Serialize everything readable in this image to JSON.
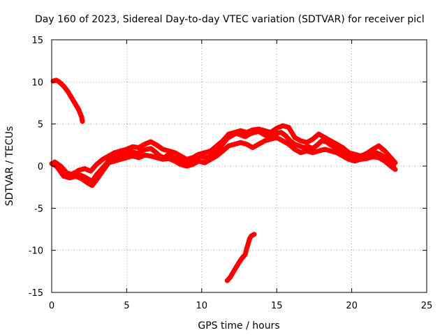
{
  "chart_data": {
    "type": "scatter",
    "title": "Day 160 of 2023, Sidereal Day-to-day VTEC variation (SDTVAR) for receiver picl",
    "xlabel": "GPS time / hours",
    "ylabel": "SDTVAR / TECUs",
    "xlim": [
      0,
      25
    ],
    "ylim": [
      -15,
      15
    ],
    "xticks": [
      0,
      5,
      10,
      15,
      20,
      25
    ],
    "yticks": [
      -15,
      -10,
      -5,
      0,
      5,
      10,
      15
    ],
    "grid": true,
    "series_color": "#ff0000",
    "series": [
      {
        "name": "main",
        "points": [
          [
            0.0,
            0.3
          ],
          [
            0.3,
            0.0
          ],
          [
            0.6,
            -0.5
          ],
          [
            0.9,
            -1.0
          ],
          [
            1.2,
            -1.2
          ],
          [
            1.5,
            -0.8
          ],
          [
            1.8,
            -1.0
          ],
          [
            2.1,
            -1.2
          ],
          [
            2.4,
            -1.5
          ],
          [
            2.7,
            -1.8
          ],
          [
            3.0,
            -1.0
          ],
          [
            3.3,
            -0.4
          ],
          [
            3.6,
            0.2
          ],
          [
            3.9,
            0.8
          ],
          [
            4.2,
            1.0
          ],
          [
            4.5,
            1.2
          ],
          [
            4.8,
            1.4
          ],
          [
            5.1,
            1.5
          ],
          [
            5.4,
            1.7
          ],
          [
            5.7,
            1.5
          ],
          [
            6.0,
            1.8
          ],
          [
            6.3,
            2.0
          ],
          [
            6.6,
            2.1
          ],
          [
            6.9,
            1.7
          ],
          [
            7.2,
            1.2
          ],
          [
            7.5,
            1.0
          ],
          [
            7.8,
            1.4
          ],
          [
            8.1,
            1.0
          ],
          [
            8.4,
            0.8
          ],
          [
            8.7,
            0.5
          ],
          [
            9.0,
            0.3
          ],
          [
            9.3,
            0.6
          ],
          [
            9.6,
            0.8
          ],
          [
            9.9,
            1.2
          ],
          [
            10.2,
            1.0
          ],
          [
            10.5,
            1.1
          ],
          [
            10.8,
            1.6
          ],
          [
            11.1,
            2.0
          ],
          [
            11.4,
            2.6
          ],
          [
            11.7,
            3.3
          ],
          [
            12.0,
            3.6
          ],
          [
            12.3,
            3.9
          ],
          [
            12.6,
            3.7
          ],
          [
            12.9,
            3.5
          ],
          [
            13.2,
            3.8
          ],
          [
            13.5,
            4.0
          ],
          [
            13.8,
            4.1
          ],
          [
            14.1,
            3.8
          ],
          [
            14.4,
            3.5
          ],
          [
            14.7,
            3.8
          ],
          [
            15.0,
            3.9
          ],
          [
            15.3,
            4.0
          ],
          [
            15.6,
            3.6
          ],
          [
            15.9,
            3.0
          ],
          [
            16.2,
            2.6
          ],
          [
            16.5,
            2.4
          ],
          [
            16.8,
            2.2
          ],
          [
            17.1,
            2.3
          ],
          [
            17.4,
            2.1
          ],
          [
            17.7,
            2.5
          ],
          [
            18.0,
            3.0
          ],
          [
            18.3,
            2.9
          ],
          [
            18.6,
            2.5
          ],
          [
            18.9,
            2.2
          ],
          [
            19.2,
            2.0
          ],
          [
            19.5,
            1.5
          ],
          [
            19.8,
            1.2
          ],
          [
            20.1,
            1.0
          ],
          [
            20.4,
            0.8
          ],
          [
            20.7,
            1.0
          ],
          [
            21.0,
            1.1
          ],
          [
            21.3,
            1.4
          ],
          [
            21.6,
            1.6
          ],
          [
            21.9,
            1.4
          ],
          [
            22.2,
            1.0
          ],
          [
            22.5,
            0.5
          ],
          [
            22.8,
            0.0
          ]
        ]
      },
      {
        "name": "main-alt",
        "points": [
          [
            0.2,
            0.5
          ],
          [
            0.6,
            0.0
          ],
          [
            1.0,
            -0.8
          ],
          [
            1.4,
            -1.0
          ],
          [
            1.8,
            -0.5
          ],
          [
            2.2,
            -0.3
          ],
          [
            2.6,
            -0.6
          ],
          [
            3.0,
            0.2
          ],
          [
            3.4,
            0.8
          ],
          [
            3.8,
            1.2
          ],
          [
            4.2,
            1.6
          ],
          [
            4.6,
            1.8
          ],
          [
            5.0,
            2.0
          ],
          [
            5.4,
            2.3
          ],
          [
            5.8,
            2.2
          ],
          [
            6.2,
            2.6
          ],
          [
            6.6,
            2.9
          ],
          [
            7.0,
            2.5
          ],
          [
            7.4,
            2.0
          ],
          [
            7.8,
            1.8
          ],
          [
            8.2,
            1.6
          ],
          [
            8.6,
            1.2
          ],
          [
            9.0,
            0.8
          ],
          [
            9.4,
            1.0
          ],
          [
            9.8,
            1.4
          ],
          [
            10.2,
            1.6
          ],
          [
            10.6,
            1.8
          ],
          [
            11.0,
            2.4
          ],
          [
            11.4,
            3.0
          ],
          [
            11.8,
            3.8
          ],
          [
            12.2,
            4.0
          ],
          [
            12.6,
            4.2
          ],
          [
            13.0,
            4.0
          ],
          [
            13.4,
            4.3
          ],
          [
            13.8,
            4.4
          ],
          [
            14.2,
            4.2
          ],
          [
            14.6,
            4.0
          ],
          [
            15.0,
            4.5
          ],
          [
            15.4,
            4.8
          ],
          [
            15.8,
            4.6
          ],
          [
            16.2,
            3.4
          ],
          [
            16.6,
            3.0
          ],
          [
            17.0,
            2.8
          ],
          [
            17.4,
            3.2
          ],
          [
            17.8,
            3.8
          ],
          [
            18.2,
            3.4
          ],
          [
            18.6,
            3.0
          ],
          [
            19.0,
            2.6
          ],
          [
            19.4,
            2.2
          ],
          [
            19.8,
            1.6
          ],
          [
            20.2,
            1.4
          ],
          [
            20.6,
            1.2
          ],
          [
            21.0,
            1.5
          ],
          [
            21.4,
            2.0
          ],
          [
            21.8,
            2.4
          ],
          [
            22.2,
            1.8
          ],
          [
            22.6,
            1.0
          ],
          [
            22.9,
            0.4
          ]
        ]
      },
      {
        "name": "main-low",
        "points": [
          [
            0.4,
            -0.2
          ],
          [
            0.8,
            -1.2
          ],
          [
            1.2,
            -1.4
          ],
          [
            1.6,
            -1.2
          ],
          [
            2.0,
            -1.5
          ],
          [
            2.4,
            -2.0
          ],
          [
            2.7,
            -2.3
          ],
          [
            3.0,
            -1.6
          ],
          [
            3.4,
            -0.6
          ],
          [
            3.8,
            0.4
          ],
          [
            4.2,
            0.6
          ],
          [
            4.6,
            0.8
          ],
          [
            5.0,
            1.0
          ],
          [
            5.4,
            1.2
          ],
          [
            5.8,
            1.0
          ],
          [
            6.2,
            1.3
          ],
          [
            6.6,
            1.2
          ],
          [
            7.0,
            1.0
          ],
          [
            7.4,
            0.8
          ],
          [
            7.8,
            0.9
          ],
          [
            8.2,
            0.6
          ],
          [
            8.6,
            0.2
          ],
          [
            9.0,
            0.0
          ],
          [
            9.4,
            0.2
          ],
          [
            9.8,
            0.6
          ],
          [
            10.2,
            0.4
          ],
          [
            10.6,
            0.8
          ],
          [
            11.0,
            1.2
          ],
          [
            11.4,
            1.8
          ],
          [
            11.8,
            2.4
          ],
          [
            12.2,
            2.6
          ],
          [
            12.6,
            2.8
          ],
          [
            13.0,
            2.6
          ],
          [
            13.4,
            2.2
          ],
          [
            13.8,
            2.6
          ],
          [
            14.2,
            3.0
          ],
          [
            14.6,
            3.2
          ],
          [
            15.0,
            3.4
          ],
          [
            15.4,
            3.0
          ],
          [
            15.8,
            2.6
          ],
          [
            16.2,
            2.0
          ],
          [
            16.6,
            1.6
          ],
          [
            17.0,
            1.8
          ],
          [
            17.4,
            1.6
          ],
          [
            17.8,
            1.8
          ],
          [
            18.2,
            2.0
          ],
          [
            18.6,
            1.8
          ],
          [
            19.0,
            1.6
          ],
          [
            19.4,
            1.2
          ],
          [
            19.8,
            0.8
          ],
          [
            20.2,
            0.6
          ],
          [
            20.6,
            0.8
          ],
          [
            21.0,
            0.9
          ],
          [
            21.4,
            1.1
          ],
          [
            21.8,
            1.0
          ],
          [
            22.2,
            0.6
          ],
          [
            22.6,
            0.0
          ],
          [
            22.9,
            -0.4
          ]
        ]
      },
      {
        "name": "upper-arc",
        "points": [
          [
            0.1,
            10.1
          ],
          [
            0.3,
            10.2
          ],
          [
            0.5,
            10.0
          ],
          [
            0.8,
            9.5
          ],
          [
            1.1,
            8.8
          ],
          [
            1.4,
            7.9
          ],
          [
            1.6,
            7.3
          ],
          [
            1.8,
            6.7
          ],
          [
            2.0,
            5.8
          ],
          [
            2.05,
            5.3
          ]
        ]
      },
      {
        "name": "lower-arc",
        "points": [
          [
            11.7,
            -13.6
          ],
          [
            11.9,
            -13.2
          ],
          [
            12.1,
            -12.6
          ],
          [
            12.3,
            -12.0
          ],
          [
            12.5,
            -11.4
          ],
          [
            12.7,
            -10.9
          ],
          [
            12.9,
            -10.5
          ],
          [
            13.0,
            -9.8
          ],
          [
            13.1,
            -9.2
          ],
          [
            13.2,
            -8.6
          ],
          [
            13.3,
            -8.3
          ],
          [
            13.5,
            -8.1
          ]
        ]
      }
    ]
  }
}
